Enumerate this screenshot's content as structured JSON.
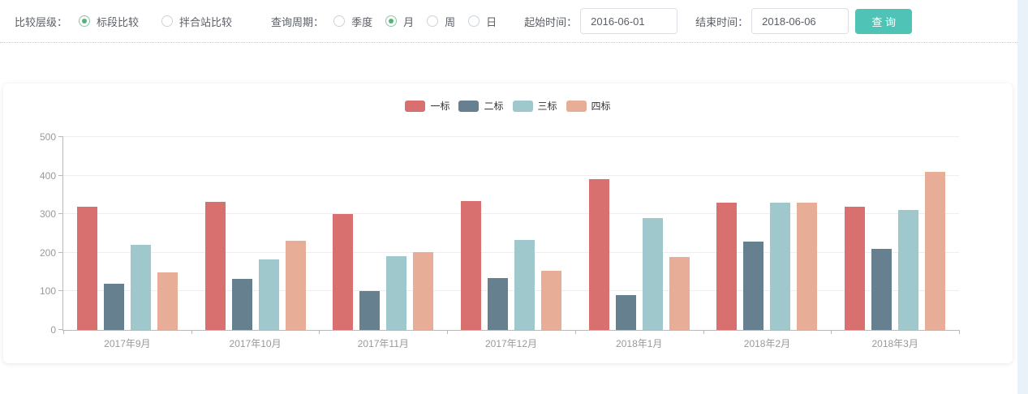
{
  "filter_bar": {
    "compare_level": {
      "label": "比较层级：",
      "options": [
        {
          "id": "section-compare",
          "label": "标段比较",
          "selected": true
        },
        {
          "id": "mixing-station-compare",
          "label": "拌合站比较",
          "selected": false
        }
      ]
    },
    "query_period": {
      "label": "查询周期：",
      "options": [
        {
          "id": "quarter",
          "label": "季度",
          "selected": false
        },
        {
          "id": "month",
          "label": "月",
          "selected": true
        },
        {
          "id": "week",
          "label": "周",
          "selected": false
        },
        {
          "id": "day",
          "label": "日",
          "selected": false
        }
      ]
    },
    "start_time": {
      "label": "起始时间：",
      "value": "2016-06-01"
    },
    "end_time": {
      "label": "结束时间：",
      "value": "2018-06-06"
    },
    "search_button_label": "查 询"
  },
  "colors": {
    "radio_selected": "#57b279",
    "search_button": "#4fc3b6",
    "grid_line": "#eeeeee",
    "axis_line": "#b4bac0",
    "tick_label": "#999999",
    "series": [
      "#d7706f",
      "#66808f",
      "#9fc8cd",
      "#e8ad96"
    ]
  },
  "chart_data": {
    "type": "bar",
    "title": "",
    "categories": [
      "2017年9月",
      "2017年10月",
      "2017年11月",
      "2017年12月",
      "2018年1月",
      "2018年2月",
      "2018年3月"
    ],
    "series": [
      {
        "name": "一标",
        "color": "#d7706f",
        "values": [
          320,
          332,
          300,
          334,
          390,
          330,
          320
        ]
      },
      {
        "name": "二标",
        "color": "#66808f",
        "values": [
          120,
          132,
          100,
          134,
          90,
          230,
          210
        ]
      },
      {
        "name": "三标",
        "color": "#9fc8cd",
        "values": [
          220,
          182,
          192,
          234,
          290,
          330,
          310
        ]
      },
      {
        "name": "四标",
        "color": "#e8ad96",
        "values": [
          150,
          232,
          202,
          154,
          190,
          330,
          410
        ]
      }
    ],
    "xlabel": "",
    "ylabel": "",
    "ylim": [
      0,
      500
    ],
    "yticks": [
      0,
      100,
      200,
      300,
      400,
      500
    ],
    "legend_position": "top-center",
    "grid": true
  }
}
